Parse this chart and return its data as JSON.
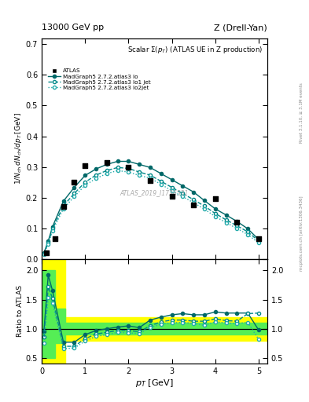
{
  "title_left": "13000 GeV pp",
  "title_right": "Z (Drell-Yan)",
  "plot_title": "Scalar Σ(p_T) (ATLAS UE in Z production)",
  "ylabel_main": "1/N$_{ch}$ dN$_{ch}$/dp$_T$ [GeV]",
  "ylabel_ratio": "Ratio to ATLAS",
  "xlabel": "p$_T$ [GeV]",
  "watermark": "ATLAS_2019_I1736531",
  "right_label1": "Rivet 3.1.10, ≥ 3.1M events",
  "right_label2": "mcplots.cern.ch [arXiv:1306.3436]",
  "pt_atlas": [
    0.1,
    0.3,
    0.5,
    0.75,
    1.0,
    1.5,
    2.0,
    2.5,
    3.0,
    3.5,
    4.0,
    4.5,
    5.0
  ],
  "val_atlas": [
    0.02,
    0.065,
    0.17,
    0.25,
    0.305,
    0.315,
    0.3,
    0.255,
    0.205,
    0.175,
    0.195,
    0.12,
    0.065
  ],
  "pt_mc": [
    0.05,
    0.15,
    0.25,
    0.5,
    0.75,
    1.0,
    1.25,
    1.5,
    1.75,
    2.0,
    2.25,
    2.5,
    2.75,
    3.0,
    3.25,
    3.5,
    3.75,
    4.0,
    4.25,
    4.5,
    4.75,
    5.0
  ],
  "val_lo": [
    0.019,
    0.058,
    0.105,
    0.188,
    0.233,
    0.272,
    0.293,
    0.308,
    0.318,
    0.318,
    0.308,
    0.298,
    0.278,
    0.258,
    0.238,
    0.218,
    0.19,
    0.163,
    0.143,
    0.122,
    0.098,
    0.063
  ],
  "val_lo1": [
    0.017,
    0.052,
    0.098,
    0.173,
    0.213,
    0.25,
    0.273,
    0.288,
    0.298,
    0.295,
    0.283,
    0.273,
    0.253,
    0.233,
    0.213,
    0.193,
    0.172,
    0.148,
    0.127,
    0.108,
    0.088,
    0.058
  ],
  "val_lo2": [
    0.015,
    0.048,
    0.092,
    0.163,
    0.203,
    0.24,
    0.262,
    0.278,
    0.288,
    0.283,
    0.272,
    0.263,
    0.243,
    0.222,
    0.203,
    0.183,
    0.162,
    0.138,
    0.118,
    0.099,
    0.079,
    0.052
  ],
  "ratio_lo": [
    0.95,
    1.92,
    1.65,
    0.77,
    0.77,
    0.9,
    0.97,
    1.0,
    1.03,
    1.05,
    1.02,
    1.15,
    1.2,
    1.24,
    1.26,
    1.24,
    1.24,
    1.29,
    1.27,
    1.27,
    1.27,
    0.98
  ],
  "ratio_lo1": [
    0.86,
    1.72,
    1.52,
    0.7,
    0.7,
    0.83,
    0.91,
    0.94,
    0.97,
    0.97,
    0.95,
    1.05,
    1.12,
    1.15,
    1.15,
    1.13,
    1.13,
    1.17,
    1.14,
    1.13,
    1.26,
    1.27
  ],
  "ratio_lo2": [
    0.76,
    1.53,
    1.44,
    0.66,
    0.67,
    0.79,
    0.87,
    0.9,
    0.94,
    0.93,
    0.92,
    1.02,
    1.08,
    1.1,
    1.11,
    1.09,
    1.06,
    1.12,
    1.1,
    1.09,
    1.11,
    0.82
  ],
  "color_lo": "#006868",
  "color_lo1": "#008888",
  "color_lo2": "#22AAAA",
  "color_atlas": "#111111",
  "xlim": [
    0,
    5.2
  ],
  "ylim_main": [
    0,
    0.72
  ],
  "ylim_ratio": [
    0.4,
    2.2
  ],
  "yticks_main": [
    0.0,
    0.1,
    0.2,
    0.3,
    0.4,
    0.5,
    0.6,
    0.7
  ],
  "yticks_ratio": [
    0.5,
    1.0,
    1.5,
    2.0
  ],
  "xticks": [
    0,
    1,
    2,
    3,
    4,
    5
  ]
}
